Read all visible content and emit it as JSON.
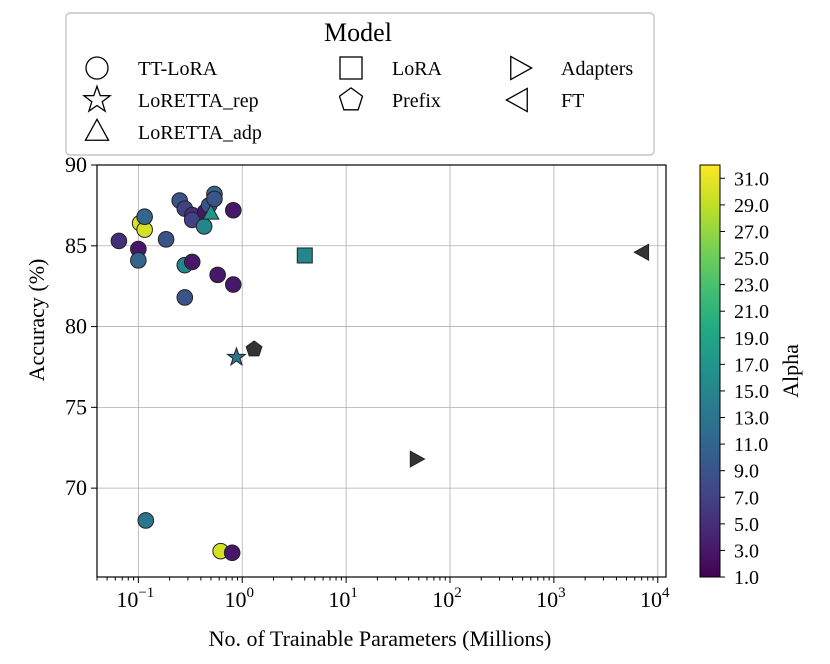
{
  "chart_data": {
    "type": "scatter",
    "title": "",
    "xlabel": "No. of Trainable Parameters (Millions)",
    "ylabel": "Accuracy (%)",
    "xscale": "log",
    "xlim": [
      0.04,
      12000
    ],
    "ylim": [
      64.5,
      90
    ],
    "x_ticks": [
      {
        "value": 0.1,
        "base": "10",
        "exp": "−1"
      },
      {
        "value": 1,
        "base": "10",
        "exp": "0"
      },
      {
        "value": 10,
        "base": "10",
        "exp": "1"
      },
      {
        "value": 100,
        "base": "10",
        "exp": "2"
      },
      {
        "value": 1000,
        "base": "10",
        "exp": "3"
      },
      {
        "value": 10000,
        "base": "10",
        "exp": "4"
      }
    ],
    "y_ticks": [
      {
        "value": 70,
        "label": "70"
      },
      {
        "value": 75,
        "label": "75"
      },
      {
        "value": 80,
        "label": "80"
      },
      {
        "value": 85,
        "label": "85"
      },
      {
        "value": 90,
        "label": "90"
      }
    ],
    "grid": true,
    "legend": {
      "title": "Model",
      "placement": "top",
      "entries": [
        {
          "label": "TT-LoRA",
          "marker": "circle"
        },
        {
          "label": "LoRA",
          "marker": "square"
        },
        {
          "label": "Adapters",
          "marker": "triangle-right"
        },
        {
          "label": "LoRETTA_rep",
          "marker": "star"
        },
        {
          "label": "Prefix",
          "marker": "pentagon"
        },
        {
          "label": "FT",
          "marker": "triangle-left"
        },
        {
          "label": "LoRETTA_adp",
          "marker": "triangle-up"
        }
      ]
    },
    "colorbar": {
      "label": "Alpha",
      "colormap": "viridis",
      "range": [
        1,
        32
      ],
      "ticks": [
        {
          "value": 1,
          "label": "1.0"
        },
        {
          "value": 3,
          "label": "3.0"
        },
        {
          "value": 5,
          "label": "5.0"
        },
        {
          "value": 7,
          "label": "7.0"
        },
        {
          "value": 9,
          "label": "9.0"
        },
        {
          "value": 11,
          "label": "11.0"
        },
        {
          "value": 13,
          "label": "13.0"
        },
        {
          "value": 15,
          "label": "15.0"
        },
        {
          "value": 17,
          "label": "17.0"
        },
        {
          "value": 19,
          "label": "19.0"
        },
        {
          "value": 21,
          "label": "21.0"
        },
        {
          "value": 23,
          "label": "23.0"
        },
        {
          "value": 25,
          "label": "25.0"
        },
        {
          "value": 27,
          "label": "27.0"
        },
        {
          "value": 29,
          "label": "29.0"
        },
        {
          "value": 31,
          "label": "31.0"
        }
      ]
    },
    "points": [
      {
        "model": "TT-LoRA",
        "x": 0.065,
        "y": 85.3,
        "alpha": 5
      },
      {
        "model": "TT-LoRA",
        "x": 0.1,
        "y": 84.8,
        "alpha": 3
      },
      {
        "model": "TT-LoRA",
        "x": 0.1,
        "y": 84.1,
        "alpha": 11
      },
      {
        "model": "TT-LoRA",
        "x": 0.104,
        "y": 86.4,
        "alpha": 30
      },
      {
        "model": "TT-LoRA",
        "x": 0.115,
        "y": 86.0,
        "alpha": 30
      },
      {
        "model": "TT-LoRA",
        "x": 0.115,
        "y": 86.8,
        "alpha": 11
      },
      {
        "model": "TT-LoRA",
        "x": 0.185,
        "y": 85.4,
        "alpha": 9
      },
      {
        "model": "TT-LoRA",
        "x": 0.25,
        "y": 87.8,
        "alpha": 9
      },
      {
        "model": "TT-LoRA",
        "x": 0.28,
        "y": 87.3,
        "alpha": 7
      },
      {
        "model": "TT-LoRA",
        "x": 0.33,
        "y": 86.9,
        "alpha": 5
      },
      {
        "model": "TT-LoRA",
        "x": 0.33,
        "y": 86.6,
        "alpha": 7
      },
      {
        "model": "TT-LoRA",
        "x": 0.44,
        "y": 87.1,
        "alpha": 3
      },
      {
        "model": "TT-LoRA",
        "x": 0.48,
        "y": 87.5,
        "alpha": 9
      },
      {
        "model": "TT-LoRA",
        "x": 0.54,
        "y": 88.2,
        "alpha": 11
      },
      {
        "model": "TT-LoRA",
        "x": 0.54,
        "y": 87.9,
        "alpha": 9
      },
      {
        "model": "TT-LoRA",
        "x": 0.43,
        "y": 86.2,
        "alpha": 15
      },
      {
        "model": "TT-LoRA",
        "x": 0.82,
        "y": 87.2,
        "alpha": 3
      },
      {
        "model": "TT-LoRA",
        "x": 0.28,
        "y": 83.8,
        "alpha": 15
      },
      {
        "model": "TT-LoRA",
        "x": 0.33,
        "y": 84.0,
        "alpha": 3
      },
      {
        "model": "TT-LoRA",
        "x": 0.58,
        "y": 83.2,
        "alpha": 3
      },
      {
        "model": "TT-LoRA",
        "x": 0.82,
        "y": 82.6,
        "alpha": 3
      },
      {
        "model": "TT-LoRA",
        "x": 0.28,
        "y": 81.8,
        "alpha": 9
      },
      {
        "model": "TT-LoRA",
        "x": 0.118,
        "y": 68.0,
        "alpha": 13
      },
      {
        "model": "TT-LoRA",
        "x": 0.62,
        "y": 66.1,
        "alpha": 30
      },
      {
        "model": "TT-LoRA",
        "x": 0.8,
        "y": 66.0,
        "alpha": 3
      },
      {
        "model": "LoRETTA_adp",
        "x": 0.5,
        "y": 87.0,
        "alpha": 17
      },
      {
        "model": "LoRETTA_rep",
        "x": 0.88,
        "y": 78.1,
        "alpha": 13
      },
      {
        "model": "Prefix",
        "x": 1.3,
        "y": 78.6,
        "alpha": null
      },
      {
        "model": "LoRA",
        "x": 4.0,
        "y": 84.4,
        "alpha": 15
      },
      {
        "model": "Adapters",
        "x": 47,
        "y": 71.8,
        "alpha": null
      },
      {
        "model": "FT",
        "x": 7200,
        "y": 84.6,
        "alpha": null
      }
    ],
    "no_alpha_color": "#333333"
  }
}
